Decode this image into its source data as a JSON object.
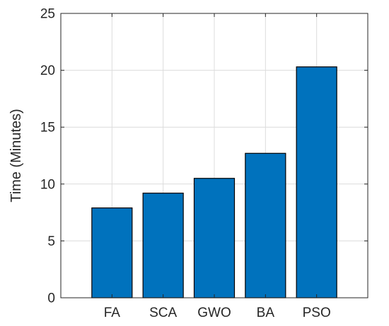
{
  "chart_data": {
    "type": "bar",
    "title": "",
    "xlabel": "",
    "ylabel": "Time (Minutes)",
    "categories": [
      "FA",
      "SCA",
      "GWO",
      "BA",
      "PSO"
    ],
    "values": [
      7.9,
      9.2,
      10.5,
      12.7,
      20.3
    ],
    "ylim": [
      0,
      25
    ],
    "xlim": [
      0,
      6
    ],
    "yticks": [
      0,
      5,
      10,
      15,
      20,
      25
    ],
    "ytick_labels": [
      "0",
      "5",
      "10",
      "15",
      "20",
      "25"
    ],
    "grid": true,
    "bar_color": "#0072BD",
    "legend": "none"
  }
}
